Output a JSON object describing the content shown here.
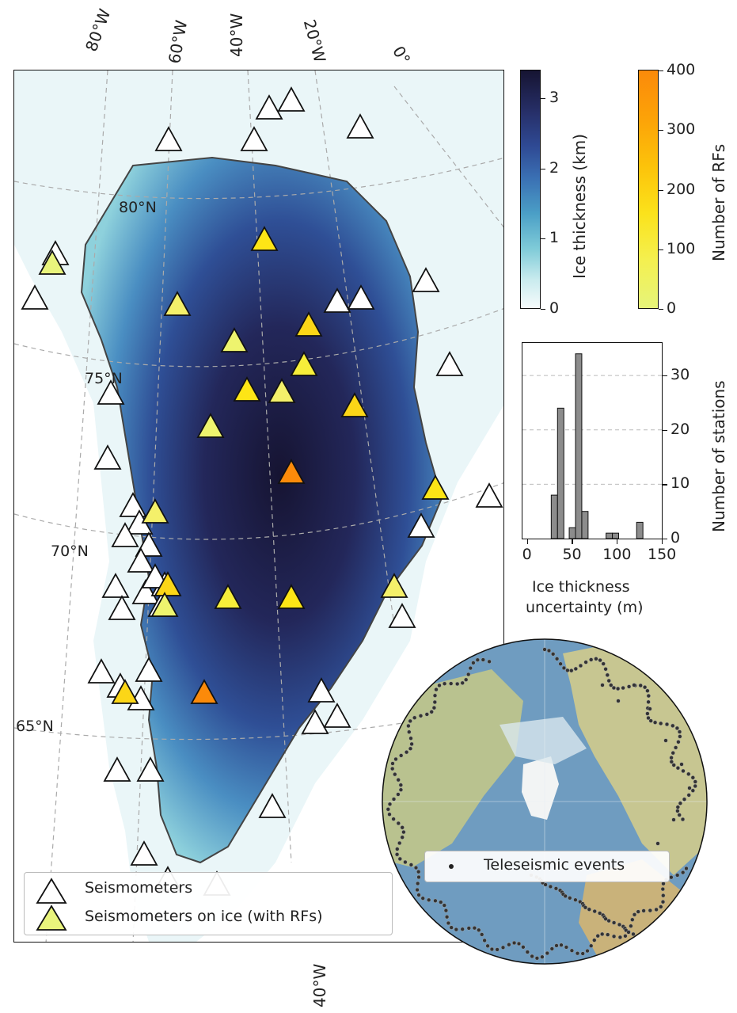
{
  "map": {
    "lon_labels": [
      "80°W",
      "60°W",
      "40°W",
      "20°W",
      "0°"
    ],
    "bottom_lon_label": "40°W",
    "lat_labels": [
      "80°N",
      "75°N",
      "70°N",
      "65°N"
    ],
    "legend": {
      "items": [
        {
          "label": "Seismometers"
        },
        {
          "label": "Seismometers on ice (with RFs)"
        }
      ]
    }
  },
  "ice_colorbar": {
    "title": "Ice thickness (km)",
    "ticks": [
      "0",
      "1",
      "2",
      "3"
    ],
    "range": [
      0,
      3.4
    ],
    "colors": [
      "#f6fbfc",
      "#7fcbd8",
      "#3a6fb3",
      "#27306a",
      "#161432"
    ]
  },
  "rf_colorbar": {
    "title": "Number of RFs",
    "ticks": [
      "0",
      "100",
      "200",
      "300",
      "400"
    ],
    "range": [
      0,
      400
    ],
    "colors": [
      "#e6f47a",
      "#fbe21b",
      "#fca208",
      "#fb8a0a"
    ]
  },
  "chart_data": {
    "type": "bar",
    "xlabel": "Ice thickness\nuncertainty (m)",
    "xlabel_lines": [
      "Ice thickness",
      "uncertainty (m)"
    ],
    "ylabel": "Number of stations",
    "xticks": [
      "0",
      "50",
      "100",
      "150"
    ],
    "yticks": [
      "0",
      "10",
      "20",
      "30"
    ],
    "xlim": [
      -5,
      150
    ],
    "ylim": [
      0,
      36
    ],
    "grid": "y",
    "bins": [
      {
        "x0": 27,
        "x1": 34,
        "value": 8
      },
      {
        "x0": 34,
        "x1": 41,
        "value": 24
      },
      {
        "x0": 41,
        "x1": 47,
        "value": 0
      },
      {
        "x0": 47,
        "x1": 54,
        "value": 2
      },
      {
        "x0": 54,
        "x1": 61,
        "value": 34
      },
      {
        "x0": 61,
        "x1": 68,
        "value": 5
      },
      {
        "x0": 88,
        "x1": 95,
        "value": 1
      },
      {
        "x0": 95,
        "x1": 102,
        "value": 1
      },
      {
        "x0": 122,
        "x1": 129,
        "value": 3
      }
    ],
    "bar_color": "#8c8c8c"
  },
  "globe": {
    "legend_label": "Teleseismic events"
  }
}
